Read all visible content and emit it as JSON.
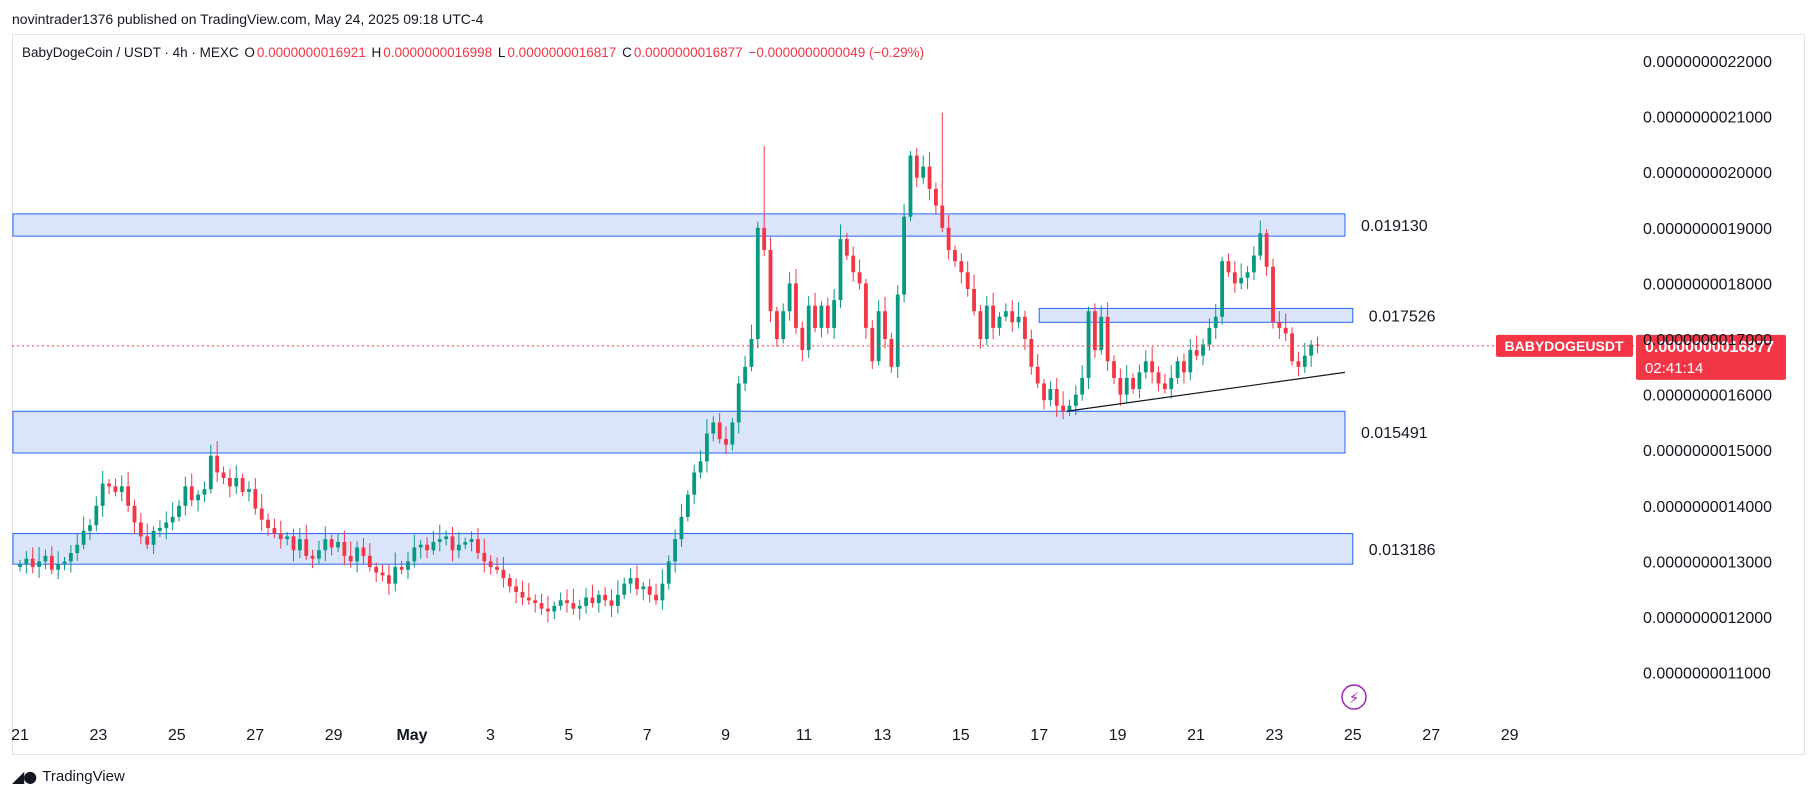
{
  "header": {
    "text": "novintrader1376 published on TradingView.com, May 24, 2025 09:18 UTC-4"
  },
  "legend": {
    "symbol": "BabyDogeCoin / USDT · 4h · MEXC",
    "o_label": "O",
    "o_value": "0.0000000016921",
    "h_label": "H",
    "h_value": "0.0000000016998",
    "l_label": "L",
    "l_value": "0.0000000016817",
    "c_label": "C",
    "c_value": "0.0000000016877",
    "change": "−0.0000000000049 (−0.29%)"
  },
  "footer": {
    "brand": "TradingView",
    "logo": "tradingview-logo-icon"
  },
  "colors": {
    "up": "#089981",
    "down": "#f23645",
    "zone_fill": "#d4e0fc",
    "zone_stroke": "#2962ff",
    "last_price": "#f23645"
  },
  "chart_data": {
    "type": "candlestick",
    "symbol": "BABYDOGEUSDT",
    "timeframe": "4h",
    "y_ticks": [
      "0.0000000022000",
      "0.0000000021000",
      "0.0000000020000",
      "0.0000000019000",
      "0.0000000018000",
      "0.0000000017000",
      "0.0000000016000",
      "0.0000000015000",
      "0.0000000014000",
      "0.0000000013000",
      "0.0000000012000",
      "0.0000000011000"
    ],
    "y_tick_values": [
      22.0,
      21.0,
      20.0,
      19.0,
      18.0,
      17.0,
      16.0,
      15.0,
      14.0,
      13.0,
      12.0,
      11.0
    ],
    "y_scale_note": "prices in units of 1e-10 USDT",
    "ylim": [
      10.3,
      23.0
    ],
    "x_ticks": [
      {
        "label": "21",
        "day": 21
      },
      {
        "label": "23",
        "day": 23
      },
      {
        "label": "25",
        "day": 25
      },
      {
        "label": "27",
        "day": 27
      },
      {
        "label": "29",
        "day": 29
      },
      {
        "label": "May",
        "day": 31
      },
      {
        "label": "3",
        "day": 33
      },
      {
        "label": "5",
        "day": 35
      },
      {
        "label": "7",
        "day": 37
      },
      {
        "label": "9",
        "day": 39
      },
      {
        "label": "11",
        "day": 41
      },
      {
        "label": "13",
        "day": 43
      },
      {
        "label": "15",
        "day": 45
      },
      {
        "label": "17",
        "day": 47
      },
      {
        "label": "19",
        "day": 49
      },
      {
        "label": "21",
        "day": 51
      },
      {
        "label": "23",
        "day": 53
      },
      {
        "label": "25",
        "day": 55
      },
      {
        "label": "27",
        "day": 57
      },
      {
        "label": "29",
        "day": 59
      }
    ],
    "x_note": "day index counted from April 0; 'May' = May 1 = day 31",
    "xlim": [
      21,
      60.3
    ],
    "zones": [
      {
        "top": 19.25,
        "bottom": 18.85,
        "x_end_day": 54.8,
        "label": "0.019130"
      },
      {
        "top": 17.55,
        "bottom": 17.3,
        "x_end_day": 55.0,
        "x_start_day": 47.0,
        "label": "0.017526"
      },
      {
        "top": 15.7,
        "bottom": 14.95,
        "x_end_day": 54.8,
        "label": "0.015491"
      },
      {
        "top": 13.5,
        "bottom": 12.95,
        "x_end_day": 55.0,
        "label": "0.013186"
      }
    ],
    "trendline": [
      {
        "day": 47.7,
        "price": 15.7
      },
      {
        "day": 54.8,
        "price": 16.4
      }
    ],
    "last_price": {
      "value": 16.877,
      "label": "BABYDOGEUSDT",
      "price_text": "0.0000000016877",
      "countdown": "02:41:14"
    },
    "closes": [
      12.95,
      13.05,
      12.9,
      13.0,
      13.1,
      12.85,
      12.95,
      13.0,
      13.15,
      13.3,
      13.55,
      13.65,
      14.0,
      14.4,
      14.35,
      14.25,
      14.35,
      14.0,
      13.7,
      13.45,
      13.3,
      13.55,
      13.6,
      13.7,
      13.8,
      14.0,
      14.35,
      14.1,
      14.2,
      14.3,
      14.9,
      14.6,
      14.5,
      14.35,
      14.5,
      14.25,
      14.3,
      13.95,
      13.75,
      13.6,
      13.5,
      13.4,
      13.45,
      13.2,
      13.4,
      13.1,
      13.05,
      13.2,
      13.4,
      13.25,
      13.35,
      13.1,
      13.0,
      13.25,
      13.1,
      12.9,
      12.8,
      12.75,
      12.6,
      12.9,
      12.85,
      13.0,
      13.25,
      13.3,
      13.2,
      13.35,
      13.4,
      13.45,
      13.2,
      13.3,
      13.35,
      13.4,
      13.15,
      13.0,
      12.9,
      12.85,
      12.7,
      12.55,
      12.45,
      12.35,
      12.3,
      12.25,
      12.15,
      12.1,
      12.2,
      12.3,
      12.25,
      12.15,
      12.2,
      12.35,
      12.25,
      12.4,
      12.3,
      12.2,
      12.4,
      12.6,
      12.7,
      12.5,
      12.55,
      12.4,
      12.3,
      12.6,
      13.0,
      13.4,
      13.8,
      14.2,
      14.6,
      14.8,
      15.3,
      15.5,
      15.2,
      15.1,
      15.5,
      16.2,
      16.5,
      17.0,
      19.0,
      18.6,
      17.5,
      17.0,
      17.5,
      18.0,
      17.2,
      16.8,
      17.6,
      17.2,
      17.6,
      17.2,
      17.7,
      18.8,
      18.5,
      18.2,
      18.0,
      17.2,
      16.6,
      17.5,
      17.0,
      16.5,
      17.8,
      19.2,
      20.3,
      19.9,
      20.1,
      19.7,
      19.4,
      19.0,
      18.6,
      18.4,
      18.2,
      17.9,
      17.5,
      17.0,
      17.6,
      17.2,
      17.4,
      17.5,
      17.3,
      17.4,
      17.0,
      16.5,
      16.2,
      15.9,
      16.1,
      15.8,
      15.7,
      15.8,
      16.0,
      16.3,
      17.5,
      16.8,
      17.4,
      16.6,
      16.3,
      16.0,
      16.3,
      16.1,
      16.4,
      16.6,
      16.4,
      16.2,
      16.1,
      16.3,
      16.6,
      16.4,
      16.8,
      16.7,
      16.9,
      17.2,
      17.4,
      18.4,
      18.2,
      18.0,
      18.1,
      18.2,
      18.5,
      18.9,
      18.3,
      17.3,
      17.2,
      17.1,
      16.6,
      16.5,
      16.7,
      16.9,
      16.88
    ]
  }
}
